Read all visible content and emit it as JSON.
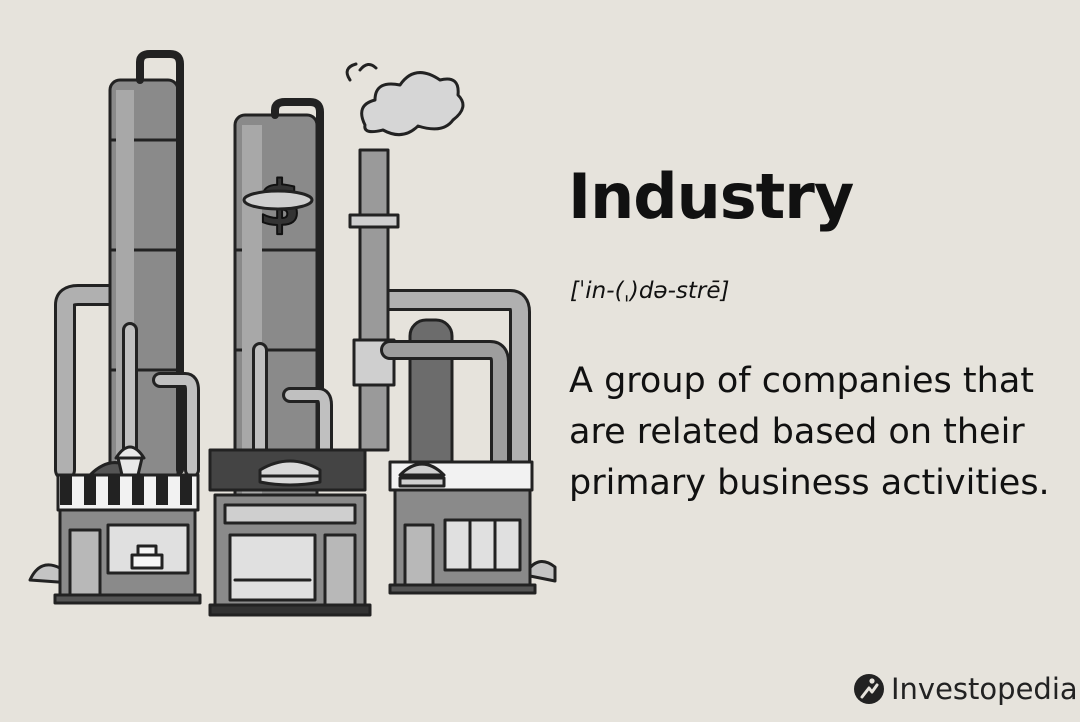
{
  "definition_card": {
    "term": "Industry",
    "pronunciation": "[ˈin-(ˌ)də-strē]",
    "definition": "A group of companies that are related based on their primary business activities."
  },
  "brand": {
    "name": "Investopedia",
    "logo_icon": "investopedia-logo-icon"
  },
  "colors": {
    "background": "#e6e3dc",
    "text": "#111111",
    "illustration_dark": "#2b2b2b",
    "illustration_mid": "#7a7a7a",
    "illustration_light": "#b8b8b8"
  }
}
